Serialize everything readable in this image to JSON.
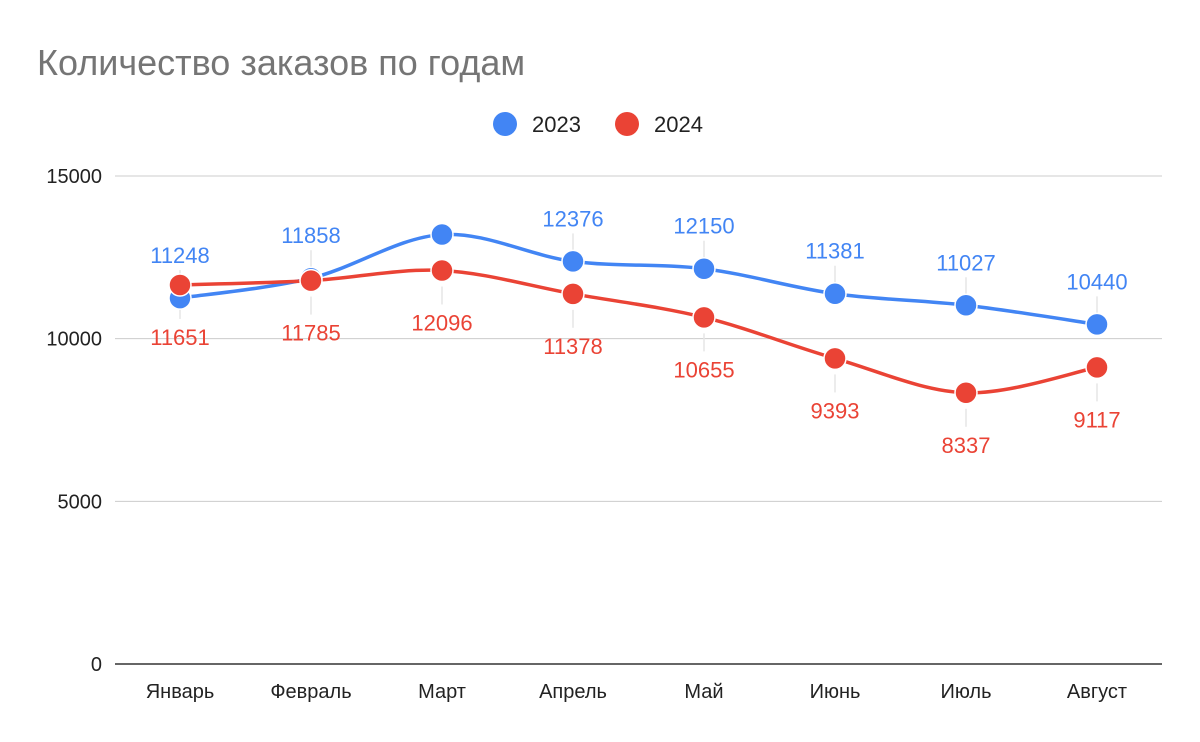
{
  "chart_data": {
    "type": "line",
    "title": "Количество заказов по годам",
    "xlabel": "",
    "ylabel": "",
    "ylim": [
      0,
      15000
    ],
    "yticks": [
      0,
      5000,
      10000,
      15000
    ],
    "grid": true,
    "legend_position": "top",
    "smooth": true,
    "categories": [
      "Январь",
      "Февраль",
      "Март",
      "Апрель",
      "Май",
      "Июнь",
      "Июль",
      "Август"
    ],
    "series": [
      {
        "name": "2023",
        "color": "#4285F4",
        "values": [
          11248,
          11858,
          13200,
          12376,
          12150,
          11381,
          11027,
          10440
        ],
        "labels": [
          "11248",
          "11858",
          "",
          "12376",
          "12150",
          "11381",
          "11027",
          "10440"
        ]
      },
      {
        "name": "2024",
        "color": "#EA4335",
        "values": [
          11651,
          11785,
          12096,
          11378,
          10655,
          9393,
          8337,
          9117
        ],
        "labels": [
          "11651",
          "11785",
          "12096",
          "11378",
          "10655",
          "9393",
          "8337",
          "9117"
        ]
      }
    ]
  }
}
